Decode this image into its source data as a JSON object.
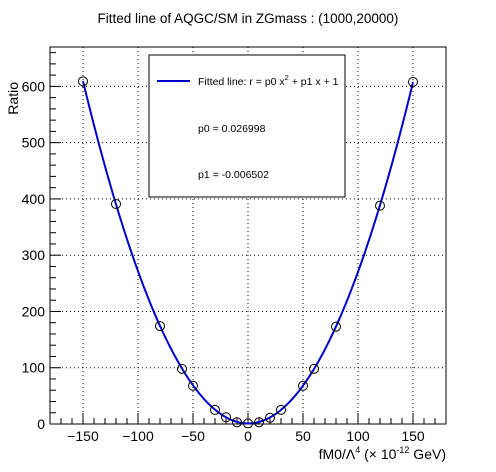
{
  "chart_data": {
    "type": "scatter",
    "title": "Fitted line of AQGC/SM in ZGmass : (1000,20000)",
    "xlabel": {
      "prefix": "fM0/Λ",
      "prefix_sup": "4",
      "middle": " (× 10",
      "middle_sup": "-12",
      "suffix": " GeV)"
    },
    "ylabel": "Ratio",
    "xlim": [
      -180,
      180
    ],
    "ylim": [
      0,
      670
    ],
    "x_ticks": [
      -150,
      -100,
      -50,
      0,
      50,
      100,
      150
    ],
    "y_ticks": [
      0,
      100,
      200,
      300,
      400,
      500,
      600
    ],
    "grid": true,
    "points": [
      {
        "x": -150,
        "y": 609
      },
      {
        "x": -120,
        "y": 391
      },
      {
        "x": -80,
        "y": 174
      },
      {
        "x": -60,
        "y": 98
      },
      {
        "x": -50,
        "y": 68
      },
      {
        "x": -30,
        "y": 25
      },
      {
        "x": -20,
        "y": 12
      },
      {
        "x": -10,
        "y": 3
      },
      {
        "x": 0,
        "y": 1
      },
      {
        "x": 10,
        "y": 3
      },
      {
        "x": 20,
        "y": 11
      },
      {
        "x": 30,
        "y": 25
      },
      {
        "x": 50,
        "y": 68
      },
      {
        "x": 60,
        "y": 98
      },
      {
        "x": 80,
        "y": 173
      },
      {
        "x": 120,
        "y": 388
      },
      {
        "x": 150,
        "y": 608
      }
    ],
    "fit": {
      "p0": 0.026998,
      "p1": -0.006502,
      "x_range": [
        -150,
        150
      ],
      "color": "#0000cc"
    },
    "legend": {
      "placement": "top-center",
      "entry_label": "Fitted line: r =  p0 x",
      "entry_sup": "2",
      "entry_suffix": " + p1 x + 1",
      "p0_text": "p0 = 0.026998",
      "p1_text": "p1 = -0.006502"
    }
  }
}
